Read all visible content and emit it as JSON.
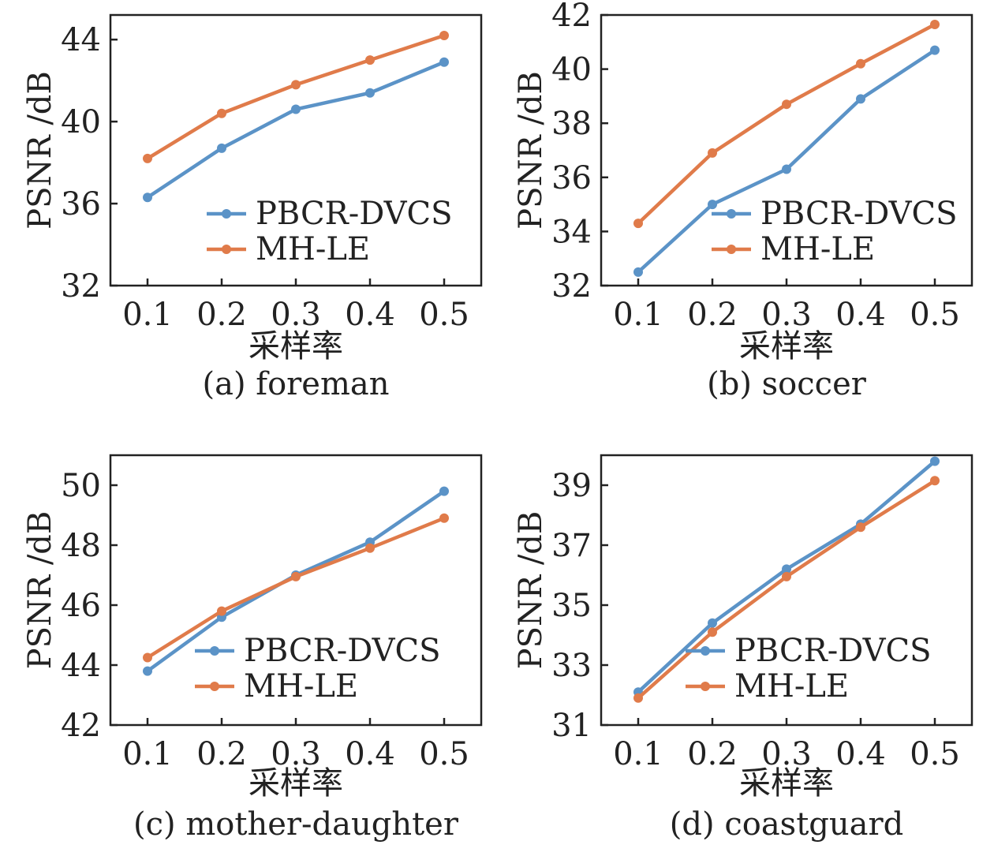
{
  "colors": {
    "series_a": "#5B93C7",
    "series_b": "#E07B4A",
    "axis": "#222222",
    "background": "#ffffff"
  },
  "chart_data": [
    {
      "type": "line",
      "caption": "(a) foreman",
      "xlabel": "采样率",
      "ylabel": "PSNR /dB",
      "x": [
        0.1,
        0.2,
        0.3,
        0.4,
        0.5
      ],
      "x_tick_labels": [
        "0.1",
        "0.2",
        "0.3",
        "0.4",
        "0.5"
      ],
      "xlim": [
        0.05,
        0.55
      ],
      "ylim": [
        32,
        45.2
      ],
      "y_ticks": [
        32,
        36,
        40,
        44
      ],
      "grid": false,
      "legend": "lower-right",
      "series": [
        {
          "name": "PBCR-DVCS",
          "values": [
            36.3,
            38.7,
            40.6,
            41.4,
            42.9
          ]
        },
        {
          "name": "MH-LE",
          "values": [
            38.2,
            40.4,
            41.8,
            43.0,
            44.2
          ]
        }
      ]
    },
    {
      "type": "line",
      "caption": "(b) soccer",
      "xlabel": "采样率",
      "ylabel": "PSNR /dB",
      "x": [
        0.1,
        0.2,
        0.3,
        0.4,
        0.5
      ],
      "x_tick_labels": [
        "0.1",
        "0.2",
        "0.3",
        "0.4",
        "0.5"
      ],
      "xlim": [
        0.05,
        0.55
      ],
      "ylim": [
        32,
        42
      ],
      "y_ticks": [
        32,
        34,
        36,
        38,
        40,
        42
      ],
      "grid": false,
      "legend": "lower-right",
      "series": [
        {
          "name": "PBCR-DVCS",
          "values": [
            32.5,
            35.0,
            36.3,
            38.9,
            40.7
          ]
        },
        {
          "name": "MH-LE",
          "values": [
            34.3,
            36.9,
            38.7,
            40.2,
            41.65
          ]
        }
      ]
    },
    {
      "type": "line",
      "caption": "(c) mother-daughter",
      "xlabel": "采样率",
      "ylabel": "PSNR /dB",
      "x": [
        0.1,
        0.2,
        0.3,
        0.4,
        0.5
      ],
      "x_tick_labels": [
        "0.1",
        "0.2",
        "0.3",
        "0.4",
        "0.5"
      ],
      "xlim": [
        0.05,
        0.55
      ],
      "ylim": [
        42,
        51
      ],
      "y_ticks": [
        42,
        44,
        46,
        48,
        50
      ],
      "grid": false,
      "legend": "lower-right",
      "series": [
        {
          "name": "PBCR-DVCS",
          "values": [
            43.8,
            45.6,
            47.0,
            48.1,
            49.8
          ]
        },
        {
          "name": "MH-LE",
          "values": [
            44.25,
            45.8,
            46.95,
            47.9,
            48.9
          ]
        }
      ]
    },
    {
      "type": "line",
      "caption": "(d) coastguard",
      "xlabel": "采样率",
      "ylabel": "PSNR /dB",
      "x": [
        0.1,
        0.2,
        0.3,
        0.4,
        0.5
      ],
      "x_tick_labels": [
        "0.1",
        "0.2",
        "0.3",
        "0.4",
        "0.5"
      ],
      "xlim": [
        0.05,
        0.55
      ],
      "ylim": [
        31,
        40
      ],
      "y_ticks": [
        31,
        33,
        35,
        37,
        39
      ],
      "grid": false,
      "legend": "lower-right",
      "series": [
        {
          "name": "PBCR-DVCS",
          "values": [
            32.1,
            34.4,
            36.2,
            37.7,
            39.8
          ]
        },
        {
          "name": "MH-LE",
          "values": [
            31.9,
            34.1,
            35.95,
            37.6,
            39.15
          ]
        }
      ]
    }
  ]
}
